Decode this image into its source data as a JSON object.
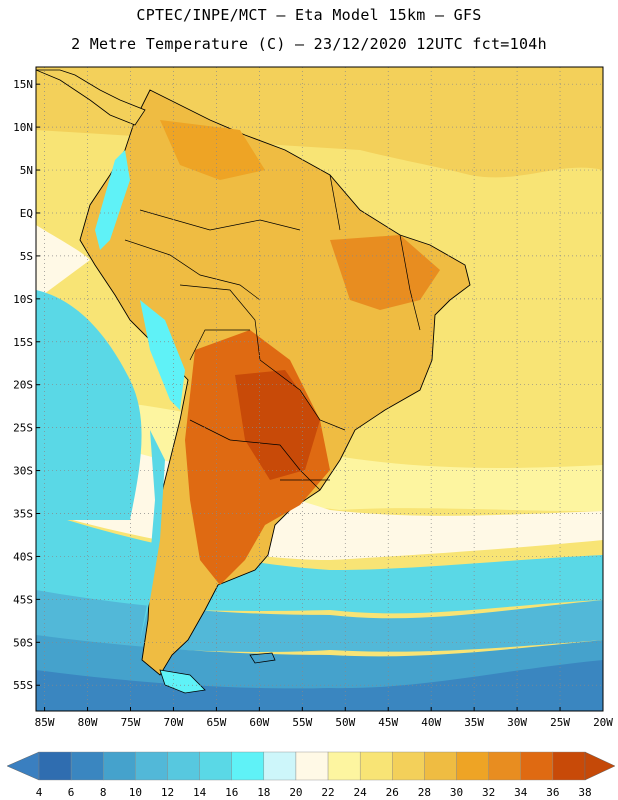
{
  "header": {
    "title_line1": "CPTEC/INPE/MCT –  Eta Model 15km – GFS",
    "title_line2": "2 Metre Temperature (C) – 23/12/2020 12UTC fct=104h"
  },
  "map": {
    "lat_labels": [
      "15N",
      "10N",
      "5N",
      "EQ",
      "5S",
      "10S",
      "15S",
      "20S",
      "25S",
      "30S",
      "35S",
      "40S",
      "45S",
      "50S",
      "55S"
    ],
    "lat_values": [
      15,
      10,
      5,
      0,
      -5,
      -10,
      -15,
      -20,
      -25,
      -30,
      -35,
      -40,
      -45,
      -50,
      -55
    ],
    "lon_labels": [
      "85W",
      "80W",
      "75W",
      "70W",
      "65W",
      "60W",
      "55W",
      "50W",
      "45W",
      "40W",
      "35W",
      "30W",
      "25W",
      "20W"
    ],
    "lon_values": [
      -85,
      -80,
      -75,
      -70,
      -65,
      -60,
      -55,
      -50,
      -45,
      -40,
      -35,
      -30,
      -25,
      -20
    ],
    "lat_range": [
      -58,
      17
    ],
    "lon_range": [
      -86,
      -20
    ]
  },
  "colorbar": {
    "labels": [
      "4",
      "6",
      "8",
      "10",
      "12",
      "14",
      "16",
      "18",
      "20",
      "22",
      "24",
      "26",
      "28",
      "30",
      "32",
      "34",
      "36",
      "38"
    ],
    "colors": [
      "#2f6db0",
      "#3a86c0",
      "#45a2cc",
      "#52b8d8",
      "#57c8df",
      "#5ad8e6",
      "#5ff2f7",
      "#cdf6fa",
      "#fff9e6",
      "#fdf5a0",
      "#f8e475",
      "#f3d05a",
      "#efbc42",
      "#eea425",
      "#e88d20",
      "#df6a12",
      "#c84a08"
    ],
    "end_low_color": "#3a7fc0",
    "end_high_color": "#c54908"
  }
}
